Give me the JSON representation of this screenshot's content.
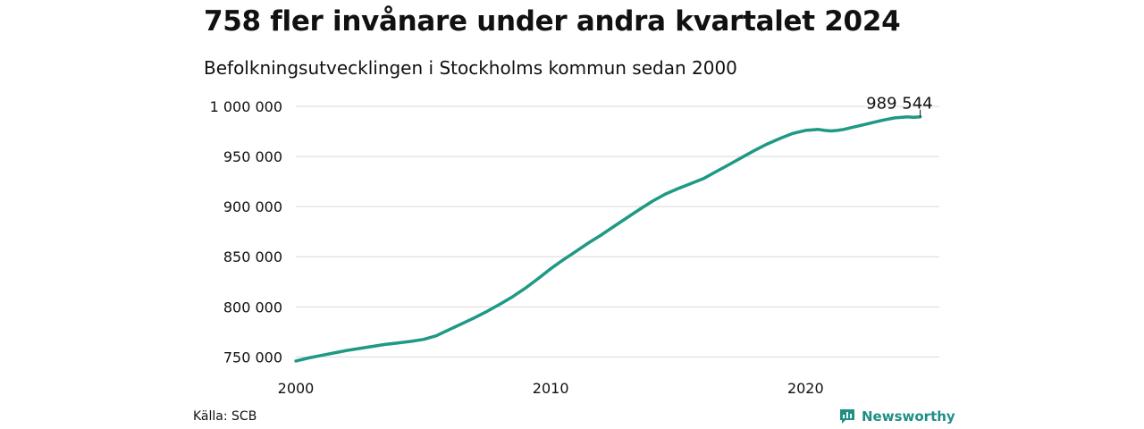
{
  "header": {
    "title": "758 fler invånare under andra kvartalet 2024",
    "subtitle": "Befolkningsutvecklingen i Stockholms kommun sedan 2000"
  },
  "footer": {
    "source": "Källa: SCB",
    "brand": "Newsworthy"
  },
  "colors": {
    "line": "#1f9985",
    "grid": "#d9d9d9",
    "brand": "#1f8f86"
  },
  "chart_data": {
    "type": "line",
    "title": "758 fler invånare under andra kvartalet 2024",
    "subtitle": "Befolkningsutvecklingen i Stockholms kommun sedan 2000",
    "xlabel": "",
    "ylabel": "",
    "xlim": [
      2000,
      2025.25
    ],
    "ylim": [
      745000,
      1000000
    ],
    "x_ticks": [
      2000,
      2010,
      2020
    ],
    "x_tick_labels": [
      "2000",
      "2010",
      "2020"
    ],
    "y_ticks": [
      750000,
      800000,
      850000,
      900000,
      950000,
      1000000
    ],
    "y_tick_labels": [
      "750 000",
      "800 000",
      "850 000",
      "900 000",
      "950 000",
      "1 000 000"
    ],
    "grid": true,
    "legend": "none",
    "end_label": "989 544",
    "series": [
      {
        "x": [
          2000,
          2000.5,
          2001,
          2001.5,
          2002,
          2002.5,
          2003,
          2003.5,
          2004,
          2004.5,
          2005,
          2005.5,
          2006,
          2006.5,
          2007,
          2007.5,
          2008,
          2008.5,
          2009,
          2009.5,
          2010,
          2010.5,
          2011,
          2011.5,
          2012,
          2012.5,
          2013,
          2013.5,
          2014,
          2014.5,
          2015,
          2015.5,
          2016,
          2016.5,
          2017,
          2017.5,
          2018,
          2018.5,
          2019,
          2019.5,
          2020,
          2020.25,
          2020.5,
          2020.75,
          2021,
          2021.25,
          2021.5,
          2021.75,
          2022,
          2022.5,
          2023,
          2023.5,
          2024,
          2024.25,
          2024.5
        ],
        "values": [
          746000,
          749000,
          751500,
          754000,
          756500,
          758500,
          760500,
          762500,
          764000,
          765500,
          767500,
          771000,
          777000,
          783000,
          789000,
          795500,
          802500,
          810000,
          818500,
          828000,
          838000,
          847000,
          855500,
          864000,
          872000,
          880500,
          889000,
          897500,
          905500,
          912500,
          918000,
          923000,
          928000,
          935000,
          942000,
          949000,
          956000,
          962500,
          968000,
          973000,
          976000,
          976500,
          977000,
          976000,
          975500,
          976000,
          977000,
          978500,
          980000,
          983000,
          986000,
          988500,
          989500,
          989000,
          989544
        ]
      }
    ]
  }
}
